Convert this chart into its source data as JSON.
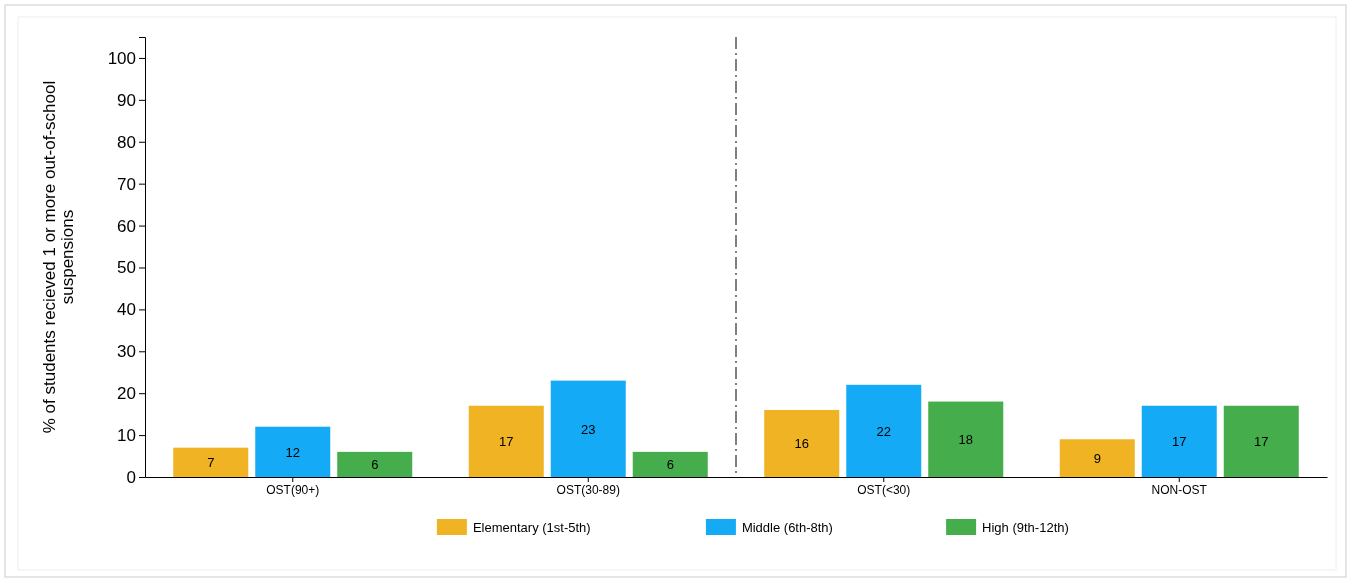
{
  "chart_data": {
    "type": "bar",
    "ylabel": "% of students recieved 1 or more out-of-school suspensions",
    "categories": [
      "OST(90+)",
      "OST(30-89)",
      "OST(<30)",
      "NON-OST"
    ],
    "series": [
      {
        "name": "Elementary (1st-5th)",
        "color": "#f0b323",
        "values": [
          7,
          17,
          16,
          9
        ]
      },
      {
        "name": "Middle (6th-8th)",
        "color": "#14aaf5",
        "values": [
          12,
          23,
          22,
          17
        ]
      },
      {
        "name": "High (9th-12th)",
        "color": "#45ad4b",
        "values": [
          6,
          6,
          18,
          17
        ]
      }
    ],
    "ylim": [
      0,
      105
    ],
    "yticks": [
      0,
      10,
      20,
      30,
      40,
      50,
      60,
      70,
      80,
      90,
      100
    ],
    "data_labels": true,
    "legend": "bottom",
    "grid": false
  }
}
